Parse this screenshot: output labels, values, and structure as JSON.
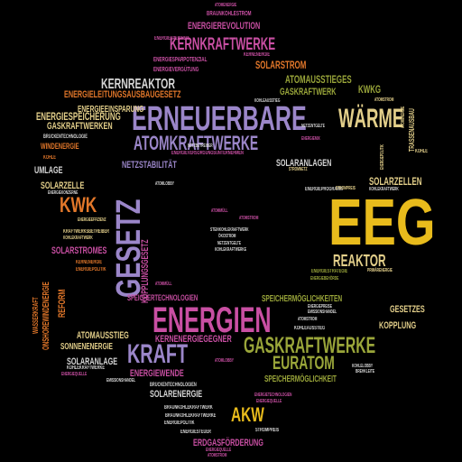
{
  "palette": {
    "background": "#000000",
    "magenta": "#c94fa3",
    "purple": "#9b86c9",
    "gold": "#e8bb1c",
    "olive": "#9aa63a",
    "cream": "#e3cf8a",
    "orange": "#e2772a",
    "grey": "#d6d6d6",
    "red": "#d9322f"
  },
  "words": [
    {
      "text": "EEG"
    },
    {
      "text": "ERNEUERBARE"
    },
    {
      "text": "ENERGIEN"
    },
    {
      "text": "ATOMKRAFTWERKE"
    },
    {
      "text": "GESETZ"
    },
    {
      "text": "WÄRME"
    },
    {
      "text": "KERNKRAFTWERKE"
    },
    {
      "text": "GASKRAFTWERKE"
    },
    {
      "text": "KRAFT"
    },
    {
      "text": "EURATOM"
    },
    {
      "text": "KWK"
    },
    {
      "text": "AKW"
    },
    {
      "text": "REAKTOR"
    },
    {
      "text": "KERNREAKTOR"
    },
    {
      "text": "ENERGIEREVOLUTION"
    },
    {
      "text": "SOLARSTROM"
    },
    {
      "text": "ATOMAUSSTIEGES"
    },
    {
      "text": "GASKRAFTWERK"
    },
    {
      "text": "KWKG"
    },
    {
      "text": "ENERGIEEINSPARUNG"
    },
    {
      "text": "ENERGIELEITUNGSAUSBAUGESETZ"
    },
    {
      "text": "ENERGIESPEICHERUNG"
    },
    {
      "text": "GASKRAFTWERKEN"
    },
    {
      "text": "WINDENERGIE"
    },
    {
      "text": "NETZSTABILITÄT"
    },
    {
      "text": "SOLARANLAGEN"
    },
    {
      "text": "SOLARZELLEN"
    },
    {
      "text": "UMLAGE"
    },
    {
      "text": "SOLARZELLE"
    },
    {
      "text": "SOLARSTROMES"
    },
    {
      "text": "KOPPLUNGSGESETZ"
    },
    {
      "text": "REFORM"
    },
    {
      "text": "ONSHOREWINDENERGIE"
    },
    {
      "text": "ATOMAUSSTIEG"
    },
    {
      "text": "SONNENENERGIE"
    },
    {
      "text": "KERNENERGIEGEGNER"
    },
    {
      "text": "SOLARANLAGE"
    },
    {
      "text": "ENERGIEWENDE"
    },
    {
      "text": "SOLARENERGIE"
    },
    {
      "text": "GESETZES"
    },
    {
      "text": "KOPPLUNG"
    },
    {
      "text": "SPEICHERMÖGLICHKEIT"
    },
    {
      "text": "SPEICHERMÖGLICHKEITEN"
    },
    {
      "text": "ERDGASFÖRDERUNG"
    },
    {
      "text": "SPEICHERTECHNOLOGIEN"
    },
    {
      "text": "ENERGIESPARPOTENZIAL"
    },
    {
      "text": "ENERGIESPEICHER"
    },
    {
      "text": "ENERGIEVERGÜTUNG"
    },
    {
      "text": "BRAUNKOHLESTROM"
    },
    {
      "text": "BRAUNKOHLEKRAFTWERK"
    },
    {
      "text": "BRAUNKOHLEKRAFTWERKE"
    },
    {
      "text": "BRÜCKENTECHNOLOGIE"
    },
    {
      "text": "KOHLEKRAFTWERKE"
    },
    {
      "text": "STROMPREIS"
    },
    {
      "text": "TRASSENAUSBAU"
    },
    {
      "text": "ENERGIEPROGRAMM"
    },
    {
      "text": "ENERGIEVERSORGUNGSUNTERNEHMEN"
    },
    {
      "text": "NETZBETREIBER"
    },
    {
      "text": "ÖKOSTROM"
    },
    {
      "text": "ENERGIESTRATEGIE"
    },
    {
      "text": "KOHLEAUSSTIEG"
    },
    {
      "text": "ENERGIEMIX"
    },
    {
      "text": "WASSERKRAFT"
    },
    {
      "text": "KOHLE"
    },
    {
      "text": "ENERGIETECHNOLOGIEN"
    },
    {
      "text": "ENERGIEPREISE"
    },
    {
      "text": "ATOMSTROM"
    },
    {
      "text": "PRIMÄRENERGIE"
    },
    {
      "text": "NETZENTGELTE"
    },
    {
      "text": "STEINKOHLEKRAFTWERK"
    },
    {
      "text": "ENERGIEPOLITIK"
    },
    {
      "text": "ENERGIESTEUER"
    },
    {
      "text": "BRÜCKENTECHNOLOGIEN"
    },
    {
      "text": "KOHLELOBBY"
    },
    {
      "text": "BREHKLEITE"
    },
    {
      "text": "ATOMMÜLL"
    },
    {
      "text": "ENERGIEQUELLE"
    },
    {
      "text": "KRAFTWERKSBETREIBER"
    },
    {
      "text": "KOHLEKRAFTWERK"
    },
    {
      "text": "ENERGIEEFFIZIENZ"
    },
    {
      "text": "ENERGIEKONZERNE"
    },
    {
      "text": "ENERGIEBEHÖRDE"
    },
    {
      "text": "KERNENERGIE"
    },
    {
      "text": "STROMNETZ"
    },
    {
      "text": "ATOMLOBBY"
    },
    {
      "text": "ATOMENERGIE"
    },
    {
      "text": "EMISSIONSHANDEL"
    }
  ]
}
